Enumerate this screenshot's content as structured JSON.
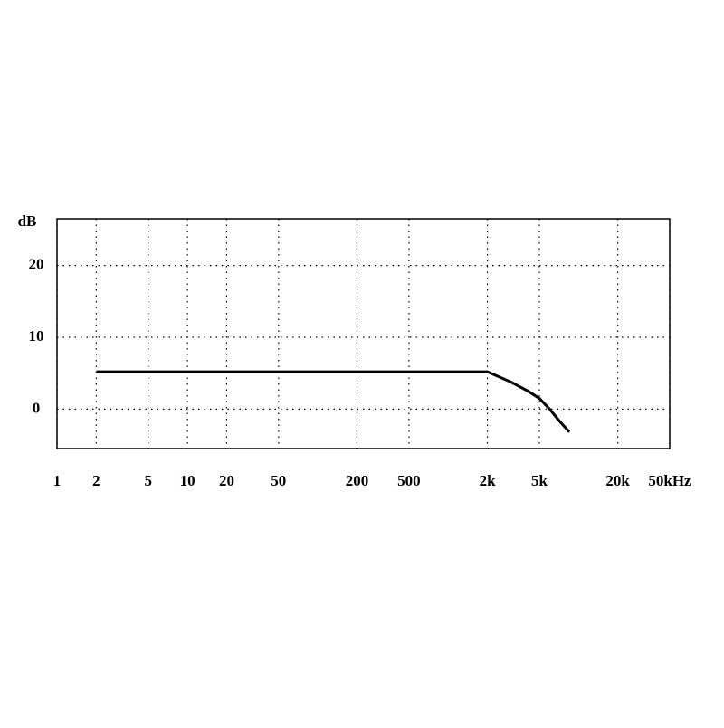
{
  "chart_data": {
    "type": "line",
    "y_label": "dB",
    "x_scale": "log",
    "x": [
      2,
      2000,
      3000,
      4000,
      5000,
      6000,
      7000,
      8500
    ],
    "series": [
      {
        "color": "#000000",
        "values": [
          5.2,
          5.2,
          3.8,
          2.6,
          1.5,
          0,
          -1.5,
          -3.2
        ]
      }
    ],
    "xlim": [
      1,
      50000
    ],
    "xticks": [
      1,
      2,
      5,
      10,
      20,
      50,
      200,
      500,
      {
        "value": 2000,
        "label": "2k"
      },
      {
        "value": 5000,
        "label": "5k"
      },
      {
        "value": 20000,
        "label": "20k"
      },
      {
        "value": 50000,
        "label": "50kHz"
      }
    ],
    "ylim": [
      -5.5,
      26.5
    ],
    "yticks": [
      0,
      10,
      20
    ],
    "grid": true
  }
}
